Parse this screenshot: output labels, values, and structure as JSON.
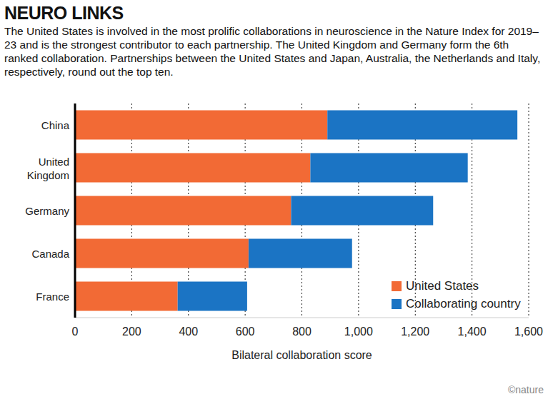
{
  "chart_data": {
    "type": "bar",
    "orientation": "horizontal",
    "stacked": true,
    "title": "NEURO LINKS",
    "subtitle": "The United States is involved in the most prolific collaborations in neuroscience in the Nature Index for 2019–23 and is the strongest contributor to each partnership. The United Kingdom and Germany form the 6th ranked collaboration. Partnerships between the United States and Japan, Australia, the Netherlands and Italy, respectively, round out the top ten.",
    "x_label": "Bilateral collaboration score",
    "credit": "©nature",
    "categories": [
      "China",
      "United Kingdom",
      "Germany",
      "Canada",
      "France"
    ],
    "series": [
      {
        "name": "United States",
        "color": "#f26a35",
        "values": [
          890,
          830,
          762,
          612,
          362
        ]
      },
      {
        "name": "Collaborating country",
        "color": "#1b74c4",
        "values": [
          670,
          555,
          501,
          365,
          245
        ]
      }
    ],
    "xlim": [
      0,
      1600
    ],
    "xticks": [
      0,
      200,
      400,
      600,
      800,
      {
        "value": 1000,
        "label": "1,000"
      },
      {
        "value": 1200,
        "label": "1,200"
      },
      {
        "value": 1400,
        "label": "1,400"
      },
      {
        "value": 1600,
        "label": "1,600"
      }
    ],
    "grid": true,
    "legend": "lower right"
  }
}
